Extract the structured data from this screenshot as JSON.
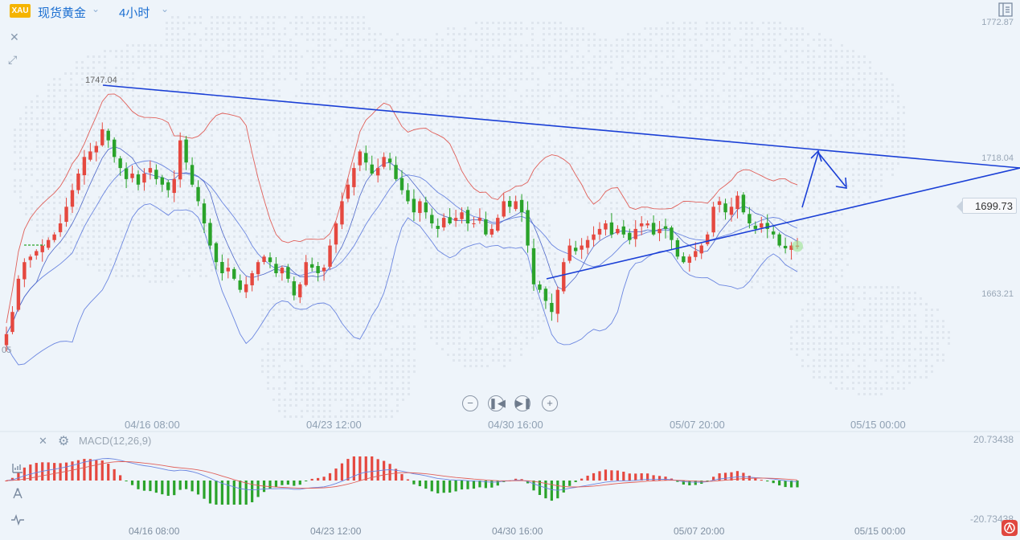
{
  "toolbar": {
    "symbol_badge": "XAU",
    "symbol_name": "现货黄金",
    "timeframe": "4小时"
  },
  "price_axis": {
    "top": "1772.87",
    "mid": "1718.04",
    "low": "1663.21",
    "current": "1699.73",
    "high_marker": "1747.04",
    "left_partial": "05"
  },
  "time_axis": {
    "labels": [
      "04/16 08:00",
      "04/23 12:00",
      "04/30 16:00",
      "05/07 20:00",
      "05/15 00:00"
    ]
  },
  "macd": {
    "label": "MACD(12,26,9)",
    "axis_top": "20.73438",
    "axis_bottom": "-20.73438"
  },
  "colors": {
    "up": "#e5483f",
    "down": "#2aa32a",
    "trendline": "#1a3fd6",
    "bollinger": "#6b86e0",
    "bollinger_upper": "#e0605a",
    "accent": "#1c6fd1"
  },
  "chart_data": {
    "type": "candlestick",
    "title": "",
    "xlabel": "",
    "ylabel": "",
    "ylim": [
      1645,
      1780
    ],
    "x_ticks": [
      "04/16 08:00",
      "04/23 12:00",
      "04/30 16:00",
      "05/07 20:00",
      "05/15 00:00"
    ],
    "y_ticks": [
      1772.87,
      1718.04,
      1663.21
    ],
    "last_price": 1699.73,
    "annotated_high": 1747.04,
    "close_series": [
      1668,
      1676,
      1688,
      1694,
      1696,
      1698,
      1700,
      1702,
      1704,
      1708,
      1714,
      1720,
      1726,
      1732,
      1734,
      1736,
      1742,
      1738,
      1732,
      1728,
      1724,
      1726,
      1722,
      1726,
      1728,
      1724,
      1722,
      1720,
      1724,
      1738,
      1730,
      1722,
      1716,
      1708,
      1700,
      1694,
      1690,
      1692,
      1688,
      1684,
      1686,
      1690,
      1694,
      1696,
      1694,
      1690,
      1692,
      1688,
      1682,
      1686,
      1694,
      1692,
      1690,
      1692,
      1700,
      1708,
      1716,
      1722,
      1728,
      1734,
      1730,
      1726,
      1728,
      1732,
      1730,
      1724,
      1720,
      1716,
      1712,
      1716,
      1712,
      1708,
      1706,
      1710,
      1708,
      1710,
      1712,
      1708,
      1708,
      1710,
      1704,
      1706,
      1710,
      1716,
      1714,
      1716,
      1712,
      1700,
      1686,
      1684,
      1680,
      1676,
      1684,
      1694,
      1700,
      1698,
      1700,
      1702,
      1704,
      1706,
      1708,
      1704,
      1706,
      1704,
      1702,
      1706,
      1708,
      1708,
      1704,
      1706,
      1706,
      1702,
      1696,
      1694,
      1696,
      1698,
      1700,
      1704,
      1714,
      1716,
      1712,
      1714,
      1718,
      1712,
      1708,
      1706,
      1708,
      1706,
      1704,
      1700,
      1699,
      1700,
      1700
    ]
  }
}
